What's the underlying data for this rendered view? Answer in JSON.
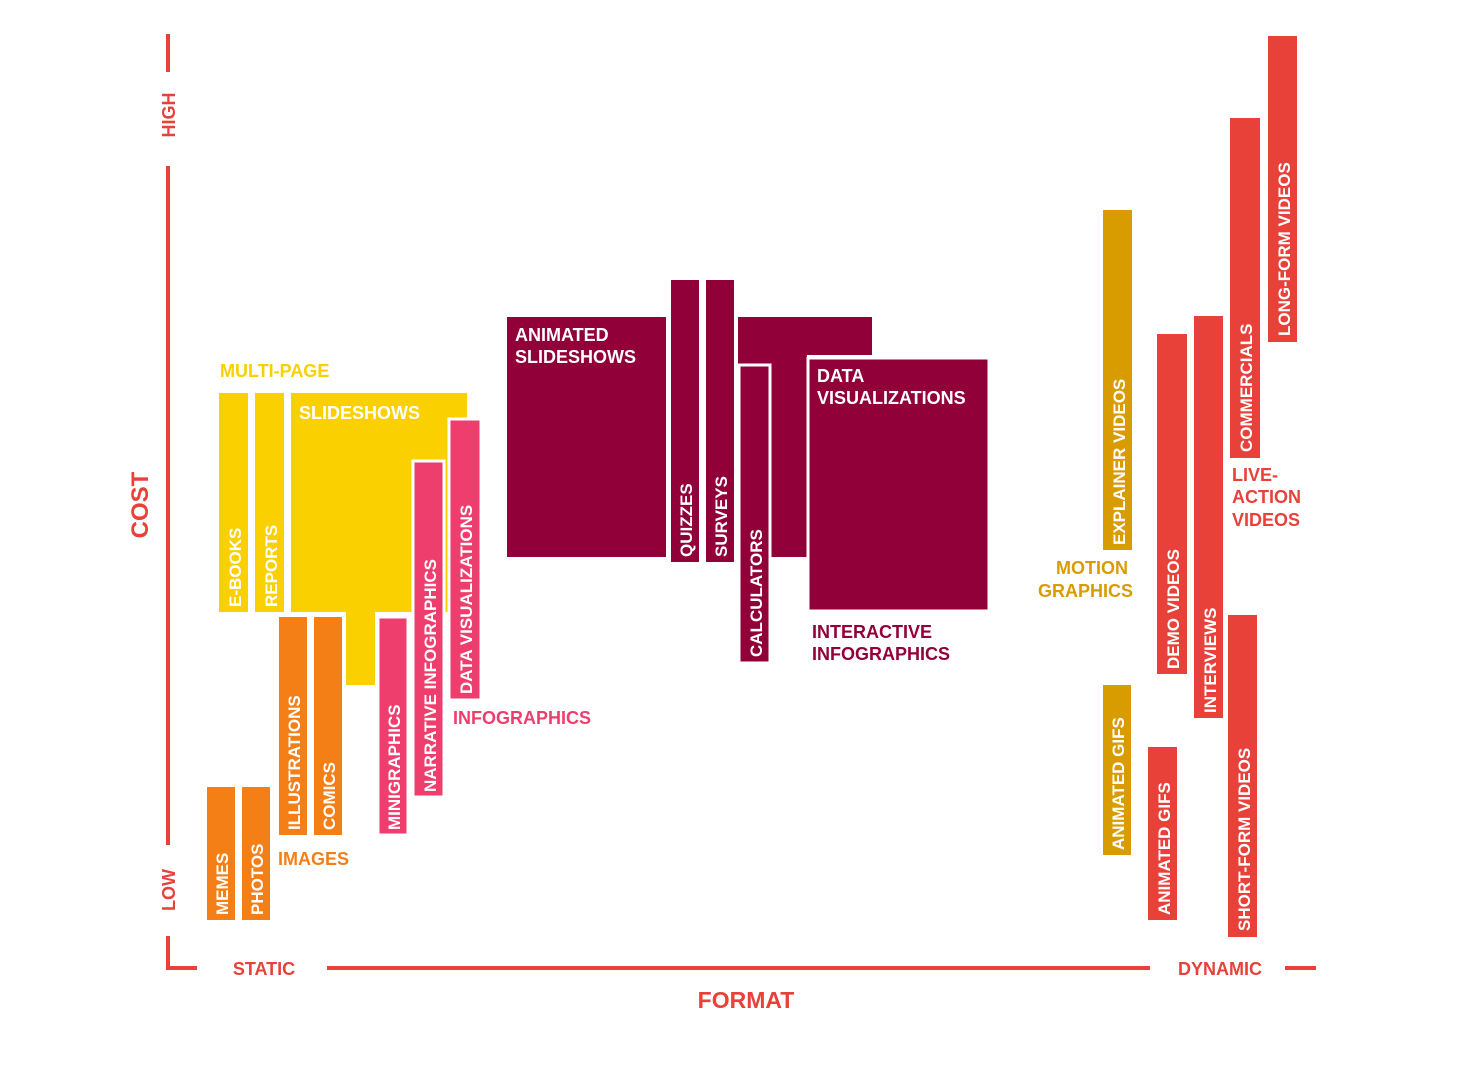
{
  "colors": {
    "axis": "#e8413a",
    "images": "#f57f17",
    "multipage": "#fbd000",
    "infographics": "#ee3e6d",
    "interactive": "#92003a",
    "motion": "#d89c00",
    "video": "#e8413a",
    "white": "#ffffff"
  },
  "axes": {
    "y_title": "COST",
    "y_high": "HIGH",
    "y_low": "LOW",
    "x_title": "FORMAT",
    "x_static": "STATIC",
    "x_dynamic": "DYNAMIC"
  },
  "groups": {
    "multipage": "MULTI-PAGE",
    "images": "IMAGES",
    "infographics": "INFOGRAPHICS",
    "interactive": [
      "INTERACTIVE",
      "INFOGRAPHICS"
    ],
    "motion": [
      "MOTION",
      "GRAPHICS"
    ],
    "liveaction": [
      "LIVE-",
      "ACTION",
      "VIDEOS"
    ]
  },
  "items": {
    "memes": "MEMES",
    "photos": "PHOTOS",
    "illustrations": "ILLUSTRATIONS",
    "comics": "COMICS",
    "ebooks": "E-BOOKS",
    "reports": "REPORTS",
    "slideshows": "SLIDESHOWS",
    "minigraphics": "MINIGRAPHICS",
    "narrative_infographics": "NARRATIVE INFOGRAPHICS",
    "data_visualizations_static": "DATA VISUALIZATIONS",
    "animated_slideshows": [
      "ANIMATED",
      "SLIDESHOWS"
    ],
    "quizzes": "QUIZZES",
    "surveys": "SURVEYS",
    "calculators": "CALCULATORS",
    "data_visualizations_interactive": [
      "DATA",
      "VISUALIZATIONS"
    ],
    "explainer_videos": "EXPLAINER VIDEOS",
    "animated_gifs_motion": "ANIMATED GIFS",
    "animated_gifs_video": "ANIMATED GIFS",
    "demo_videos": "DEMO VIDEOS",
    "interviews": "INTERVIEWS",
    "short_form_videos": "SHORT-FORM VIDEOS",
    "commercials": "COMMERCIALS",
    "long_form_videos": "LONG-FORM VIDEOS"
  }
}
